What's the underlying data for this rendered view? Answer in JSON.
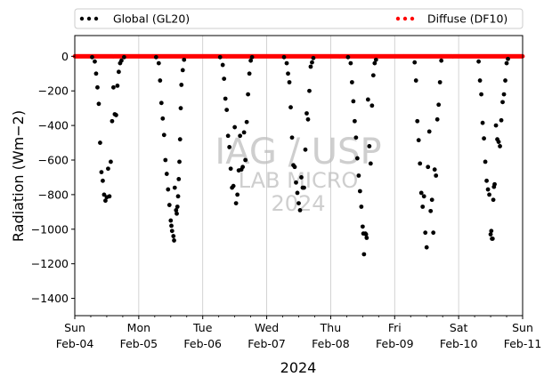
{
  "chart_data": {
    "type": "scatter",
    "x_axis": {
      "type": "date",
      "range": [
        "2024-02-04",
        "2024-02-11"
      ],
      "ticks": [
        {
          "date": "2024-02-04",
          "line1": "Sun",
          "line2": "Feb-04"
        },
        {
          "date": "2024-02-05",
          "line1": "Mon",
          "line2": "Feb-05"
        },
        {
          "date": "2024-02-06",
          "line1": "Tue",
          "line2": "Feb-06"
        },
        {
          "date": "2024-02-07",
          "line1": "Wed",
          "line2": "Feb-07"
        },
        {
          "date": "2024-02-08",
          "line1": "Thu",
          "line2": "Feb-08"
        },
        {
          "date": "2024-02-09",
          "line1": "Fri",
          "line2": "Feb-09"
        },
        {
          "date": "2024-02-10",
          "line1": "Sat",
          "line2": "Feb-10"
        },
        {
          "date": "2024-02-11",
          "line1": "Sun",
          "line2": "Feb-11"
        }
      ],
      "label": "2024",
      "grid": true
    },
    "y_axis": {
      "label": "Radiation (Wm−2)",
      "ticks": [
        0,
        -200,
        -400,
        -600,
        -800,
        -1000,
        -1200,
        -1400
      ],
      "range": [
        -1500,
        120
      ],
      "grid": false
    },
    "legend": {
      "placement": "top, outside plot"
    },
    "watermark": {
      "line1": "IAG / USP",
      "line2": "LAB MICRO",
      "line3": "2024"
    },
    "series": [
      {
        "name": "Global (GL20)",
        "color": "#000000",
        "points": [
          [
            "2024-02-04 06:30",
            -5
          ],
          [
            "2024-02-04 07:30",
            -30
          ],
          [
            "2024-02-04 08:00",
            -100
          ],
          [
            "2024-02-04 08:30",
            -180
          ],
          [
            "2024-02-04 09:00",
            -275
          ],
          [
            "2024-02-04 09:30",
            -500
          ],
          [
            "2024-02-04 10:00",
            -670
          ],
          [
            "2024-02-04 10:30",
            -720
          ],
          [
            "2024-02-04 11:00",
            -800
          ],
          [
            "2024-02-04 11:30",
            -835
          ],
          [
            "2024-02-04 12:00",
            -815
          ],
          [
            "2024-02-04 12:30",
            -650
          ],
          [
            "2024-02-04 13:00",
            -810
          ],
          [
            "2024-02-04 13:30",
            -610
          ],
          [
            "2024-02-04 14:00",
            -375
          ],
          [
            "2024-02-04 14:30",
            -180
          ],
          [
            "2024-02-04 15:00",
            -335
          ],
          [
            "2024-02-04 15:30",
            -340
          ],
          [
            "2024-02-04 16:00",
            -170
          ],
          [
            "2024-02-04 16:30",
            -90
          ],
          [
            "2024-02-04 17:00",
            -40
          ],
          [
            "2024-02-04 17:30",
            -25
          ],
          [
            "2024-02-04 18:30",
            -5
          ],
          [
            "2024-02-05 06:30",
            -5
          ],
          [
            "2024-02-05 07:30",
            -40
          ],
          [
            "2024-02-05 08:00",
            -140
          ],
          [
            "2024-02-05 08:30",
            -270
          ],
          [
            "2024-02-05 09:00",
            -360
          ],
          [
            "2024-02-05 09:30",
            -455
          ],
          [
            "2024-02-05 10:00",
            -600
          ],
          [
            "2024-02-05 10:30",
            -680
          ],
          [
            "2024-02-05 11:00",
            -770
          ],
          [
            "2024-02-05 11:30",
            -860
          ],
          [
            "2024-02-05 12:00",
            -950
          ],
          [
            "2024-02-05 12:15",
            -980
          ],
          [
            "2024-02-05 12:30",
            -1010
          ],
          [
            "2024-02-05 13:00",
            -1040
          ],
          [
            "2024-02-05 13:15",
            -1065
          ],
          [
            "2024-02-05 13:30",
            -760
          ],
          [
            "2024-02-05 14:00",
            -890
          ],
          [
            "2024-02-05 14:15",
            -910
          ],
          [
            "2024-02-05 14:30",
            -870
          ],
          [
            "2024-02-05 14:45",
            -810
          ],
          [
            "2024-02-05 15:00",
            -710
          ],
          [
            "2024-02-05 15:15",
            -610
          ],
          [
            "2024-02-05 15:30",
            -480
          ],
          [
            "2024-02-05 15:45",
            -300
          ],
          [
            "2024-02-05 16:00",
            -165
          ],
          [
            "2024-02-05 16:30",
            -80
          ],
          [
            "2024-02-05 17:00",
            -20
          ],
          [
            "2024-02-06 06:30",
            -5
          ],
          [
            "2024-02-06 07:30",
            -50
          ],
          [
            "2024-02-06 08:00",
            -130
          ],
          [
            "2024-02-06 08:30",
            -245
          ],
          [
            "2024-02-06 09:00",
            -310
          ],
          [
            "2024-02-06 09:30",
            -460
          ],
          [
            "2024-02-06 10:00",
            -525
          ],
          [
            "2024-02-06 10:30",
            -650
          ],
          [
            "2024-02-06 11:00",
            -760
          ],
          [
            "2024-02-06 11:30",
            -750
          ],
          [
            "2024-02-06 12:00",
            -410
          ],
          [
            "2024-02-06 12:30",
            -850
          ],
          [
            "2024-02-06 13:00",
            -800
          ],
          [
            "2024-02-06 13:30",
            -660
          ],
          [
            "2024-02-06 14:00",
            -460
          ],
          [
            "2024-02-06 14:30",
            -655
          ],
          [
            "2024-02-06 15:00",
            -640
          ],
          [
            "2024-02-06 15:30",
            -440
          ],
          [
            "2024-02-06 16:00",
            -600
          ],
          [
            "2024-02-06 16:30",
            -380
          ],
          [
            "2024-02-06 17:00",
            -220
          ],
          [
            "2024-02-06 17:30",
            -100
          ],
          [
            "2024-02-06 18:00",
            -25
          ],
          [
            "2024-02-06 18:30",
            -5
          ],
          [
            "2024-02-07 06:30",
            -5
          ],
          [
            "2024-02-07 07:30",
            -40
          ],
          [
            "2024-02-07 08:00",
            -100
          ],
          [
            "2024-02-07 08:30",
            -150
          ],
          [
            "2024-02-07 09:00",
            -295
          ],
          [
            "2024-02-07 09:30",
            -470
          ],
          [
            "2024-02-07 10:00",
            -630
          ],
          [
            "2024-02-07 10:30",
            -640
          ],
          [
            "2024-02-07 11:00",
            -730
          ],
          [
            "2024-02-07 11:30",
            -790
          ],
          [
            "2024-02-07 12:00",
            -850
          ],
          [
            "2024-02-07 12:30",
            -890
          ],
          [
            "2024-02-07 13:00",
            -700
          ],
          [
            "2024-02-07 13:30",
            -760
          ],
          [
            "2024-02-07 14:00",
            -760
          ],
          [
            "2024-02-07 14:30",
            -540
          ],
          [
            "2024-02-07 15:00",
            -330
          ],
          [
            "2024-02-07 15:30",
            -365
          ],
          [
            "2024-02-07 16:00",
            -200
          ],
          [
            "2024-02-07 16:30",
            -60
          ],
          [
            "2024-02-07 17:00",
            -35
          ],
          [
            "2024-02-07 17:30",
            -10
          ],
          [
            "2024-02-08 06:30",
            -5
          ],
          [
            "2024-02-08 07:30",
            -40
          ],
          [
            "2024-02-08 08:00",
            -150
          ],
          [
            "2024-02-08 08:30",
            -260
          ],
          [
            "2024-02-08 09:00",
            -375
          ],
          [
            "2024-02-08 09:30",
            -470
          ],
          [
            "2024-02-08 10:00",
            -590
          ],
          [
            "2024-02-08 10:30",
            -690
          ],
          [
            "2024-02-08 11:00",
            -780
          ],
          [
            "2024-02-08 11:30",
            -870
          ],
          [
            "2024-02-08 12:00",
            -985
          ],
          [
            "2024-02-08 12:15",
            -1025
          ],
          [
            "2024-02-08 12:30",
            -1145
          ],
          [
            "2024-02-08 13:00",
            -1025
          ],
          [
            "2024-02-08 13:15",
            -1030
          ],
          [
            "2024-02-08 13:30",
            -1050
          ],
          [
            "2024-02-08 14:00",
            -250
          ],
          [
            "2024-02-08 14:30",
            -520
          ],
          [
            "2024-02-08 15:00",
            -620
          ],
          [
            "2024-02-08 15:30",
            -285
          ],
          [
            "2024-02-08 16:00",
            -110
          ],
          [
            "2024-02-08 16:30",
            -40
          ],
          [
            "2024-02-08 17:00",
            -20
          ],
          [
            "2024-02-09 07:30",
            -35
          ],
          [
            "2024-02-09 08:00",
            -140
          ],
          [
            "2024-02-09 08:30",
            -375
          ],
          [
            "2024-02-09 09:00",
            -485
          ],
          [
            "2024-02-09 09:30",
            -620
          ],
          [
            "2024-02-09 10:00",
            -790
          ],
          [
            "2024-02-09 10:30",
            -870
          ],
          [
            "2024-02-09 11:00",
            -810
          ],
          [
            "2024-02-09 11:30",
            -1020
          ],
          [
            "2024-02-09 12:00",
            -1105
          ],
          [
            "2024-02-09 12:30",
            -640
          ],
          [
            "2024-02-09 13:00",
            -435
          ],
          [
            "2024-02-09 13:30",
            -895
          ],
          [
            "2024-02-09 14:00",
            -830
          ],
          [
            "2024-02-09 14:30",
            -1020
          ],
          [
            "2024-02-09 15:00",
            -655
          ],
          [
            "2024-02-09 15:30",
            -690
          ],
          [
            "2024-02-09 16:00",
            -365
          ],
          [
            "2024-02-09 16:30",
            -280
          ],
          [
            "2024-02-09 17:00",
            -150
          ],
          [
            "2024-02-09 17:30",
            -25
          ],
          [
            "2024-02-10 07:30",
            -30
          ],
          [
            "2024-02-10 08:00",
            -140
          ],
          [
            "2024-02-10 08:30",
            -220
          ],
          [
            "2024-02-10 09:00",
            -385
          ],
          [
            "2024-02-10 09:30",
            -475
          ],
          [
            "2024-02-10 10:00",
            -610
          ],
          [
            "2024-02-10 10:30",
            -720
          ],
          [
            "2024-02-10 11:00",
            -770
          ],
          [
            "2024-02-10 11:30",
            -800
          ],
          [
            "2024-02-10 12:00",
            -1030
          ],
          [
            "2024-02-10 12:15",
            -1010
          ],
          [
            "2024-02-10 12:30",
            -1055
          ],
          [
            "2024-02-10 12:45",
            -1055
          ],
          [
            "2024-02-10 13:00",
            -830
          ],
          [
            "2024-02-10 13:15",
            -755
          ],
          [
            "2024-02-10 13:30",
            -740
          ],
          [
            "2024-02-10 14:00",
            -400
          ],
          [
            "2024-02-10 14:30",
            -480
          ],
          [
            "2024-02-10 15:00",
            -495
          ],
          [
            "2024-02-10 15:30",
            -520
          ],
          [
            "2024-02-10 16:00",
            -370
          ],
          [
            "2024-02-10 16:30",
            -265
          ],
          [
            "2024-02-10 17:00",
            -220
          ],
          [
            "2024-02-10 17:30",
            -140
          ],
          [
            "2024-02-10 18:00",
            -40
          ],
          [
            "2024-02-10 18:30",
            -15
          ]
        ]
      },
      {
        "name": "Diffuse (DF10)",
        "color": "#ff0000",
        "points": "continuous 10-minute series at approximately 0 W/m² across 2024-02-04 to 2024-02-11"
      }
    ]
  }
}
